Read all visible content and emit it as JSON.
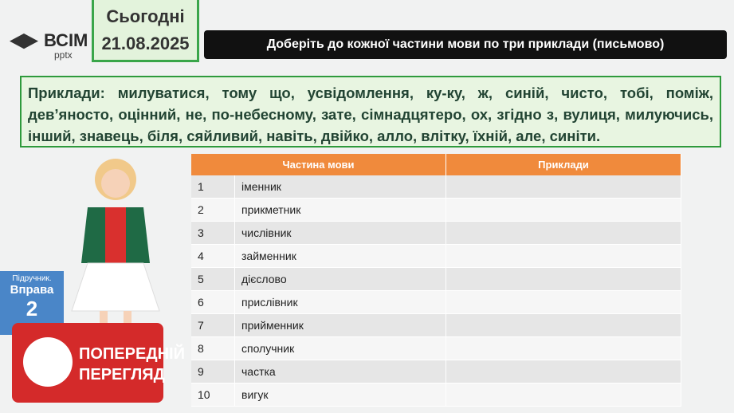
{
  "header": {
    "logo": "ВСІМ",
    "logo_sub": "pptx",
    "today_label": "Сьогодні",
    "date": "21.08.2025",
    "title": "Доберіть до кожної частини мови по три приклади (письмово)"
  },
  "examples": {
    "text": "Приклади: милуватися, тому що, усвідомлення, ку-ку, ж, синій, чисто, тобі, поміж, дев’яносто, оцінний, не, по-небесному, зате, сімнадцятеро, ох, згідно з, вулиця, милуючись, інший, знавець, біля, сяйливий, навіть, двійко, алло, влітку, їхній, але, синіти."
  },
  "table": {
    "headers": [
      "Частина мови",
      "Приклади"
    ],
    "rows": [
      [
        "1",
        "іменник"
      ],
      [
        "2",
        "прикметник"
      ],
      [
        "3",
        "числівник"
      ],
      [
        "4",
        "займенник"
      ],
      [
        "5",
        "дієслово"
      ],
      [
        "6",
        "прислівник"
      ],
      [
        "7",
        "прийменник"
      ],
      [
        "8",
        "сполучник"
      ],
      [
        "9",
        "частка"
      ],
      [
        "10",
        "вигук"
      ]
    ]
  },
  "sidebar": {
    "book": "Підручник.",
    "exercise": "Вправа",
    "number": "2"
  },
  "badge": {
    "line1": "ПОПЕРЕДНІЙ",
    "line2": "ПЕРЕГЛЯД"
  }
}
